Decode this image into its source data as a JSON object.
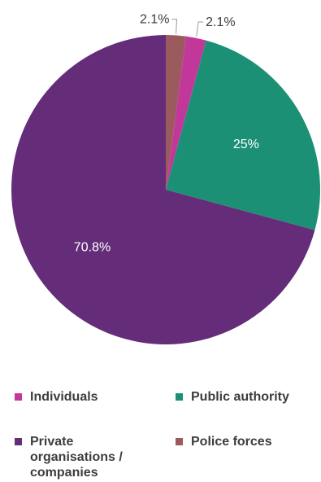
{
  "chart_data": {
    "type": "pie",
    "categories": [
      "Police forces",
      "Individuals",
      "Public authority",
      "Private organisations / companies"
    ],
    "values": [
      2.1,
      2.1,
      25,
      70.8
    ],
    "data_labels": [
      "2.1%",
      "2.1%",
      "25%",
      "70.8%"
    ],
    "colors": [
      "#9b5a5e",
      "#c2389a",
      "#1b9075",
      "#652d79"
    ],
    "title": "",
    "legend_position": "bottom"
  },
  "legend": {
    "items": [
      {
        "label": "Individuals",
        "color": "#c2389a"
      },
      {
        "label": "Public authority",
        "color": "#1b9075"
      },
      {
        "label": "Private organisations / companies",
        "color": "#652d79"
      },
      {
        "label": "Police forces",
        "color": "#9b5a5e"
      }
    ]
  }
}
